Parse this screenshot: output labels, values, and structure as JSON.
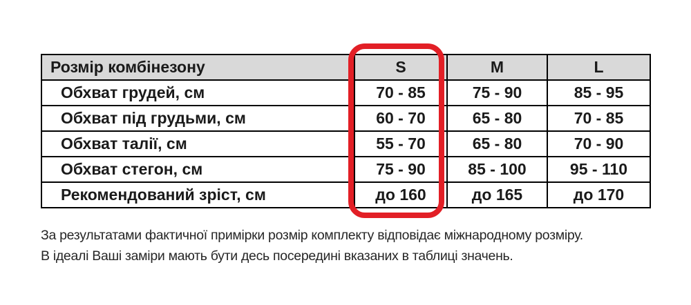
{
  "table": {
    "header": {
      "label": "Розмір комбінезону",
      "sizes": [
        "S",
        "M",
        "L"
      ]
    },
    "rows": [
      {
        "label": "Обхват грудей, см",
        "s": "70 - 85",
        "m": "75 - 90",
        "l": "85 - 95"
      },
      {
        "label": "Обхват під грудьми, см",
        "s": "60 - 70",
        "m": "65 - 80",
        "l": "70 - 85"
      },
      {
        "label": "Обхват талії, см",
        "s": "55 - 70",
        "m": "65 - 80",
        "l": "70 - 90"
      },
      {
        "label": "Обхват стегон, см",
        "s": "75 - 90",
        "m": "85 - 100",
        "l": "95 - 110"
      },
      {
        "label": "Рекомендований зріст, см",
        "s": "до 160",
        "m": "до 165",
        "l": "до 170"
      }
    ],
    "highlighted_column": "S"
  },
  "notes": {
    "line1": "За результатами фактичної примірки розмір комплекту відповідає міжнародному розміру.",
    "line2": "В ідеалі Ваші заміри мають бути десь посередині вказаних в таблиці значень."
  },
  "colors": {
    "highlight": "#e21f26",
    "header_bg": "#d9d9d9",
    "border": "#000000"
  }
}
